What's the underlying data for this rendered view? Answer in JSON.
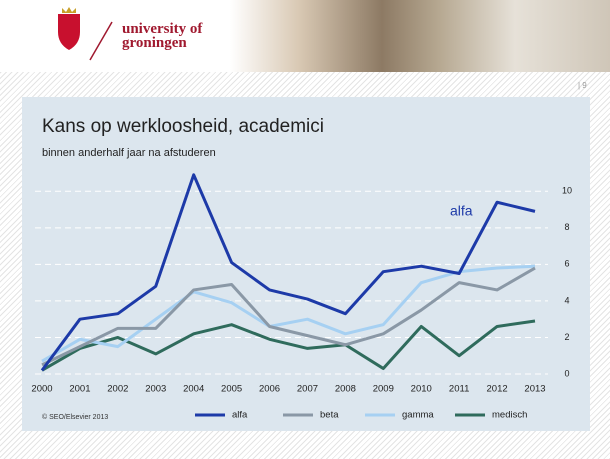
{
  "header": {
    "brand": [
      "university of",
      "groningen"
    ]
  },
  "page_number": "| 9",
  "chart_data": {
    "type": "line",
    "title": "Kans op werkloosheid, academici",
    "subtitle": "binnen anderhalf jaar na afstuderen",
    "annotation": "alfa",
    "source": "© SEO/Elsevier 2013",
    "x": [
      2000,
      2001,
      2002,
      2003,
      2004,
      2005,
      2006,
      2007,
      2008,
      2009,
      2010,
      2011,
      2012,
      2013
    ],
    "xlim": [
      2000,
      2013
    ],
    "xticks": [
      2000,
      2001,
      2002,
      2003,
      2004,
      2005,
      2006,
      2007,
      2008,
      2009,
      2010,
      2011,
      2012,
      2013
    ],
    "ylim": [
      0,
      11
    ],
    "yticks": [
      0,
      2,
      4,
      6,
      8,
      10
    ],
    "grid": true,
    "series": [
      {
        "name": "alfa",
        "color": "#1d3aa8",
        "values": [
          0.2,
          3.0,
          3.3,
          4.8,
          10.9,
          6.1,
          4.6,
          4.1,
          3.3,
          5.6,
          5.9,
          5.5,
          9.4,
          8.9
        ]
      },
      {
        "name": "beta",
        "color": "#8a98a6",
        "values": [
          0.5,
          1.5,
          2.5,
          2.5,
          4.6,
          4.9,
          2.6,
          2.1,
          1.6,
          2.2,
          3.5,
          5.0,
          4.6,
          5.8
        ]
      },
      {
        "name": "gamma",
        "color": "#a6d0f2",
        "values": [
          0.7,
          1.9,
          1.5,
          3.0,
          4.5,
          3.9,
          2.6,
          3.0,
          2.2,
          2.7,
          5.0,
          5.6,
          5.8,
          5.9
        ]
      },
      {
        "name": "medisch",
        "color": "#2f6b5c",
        "values": [
          0.2,
          1.4,
          2.0,
          1.1,
          2.2,
          2.7,
          1.9,
          1.4,
          1.6,
          0.3,
          2.6,
          1.0,
          2.6,
          2.9
        ]
      }
    ]
  }
}
